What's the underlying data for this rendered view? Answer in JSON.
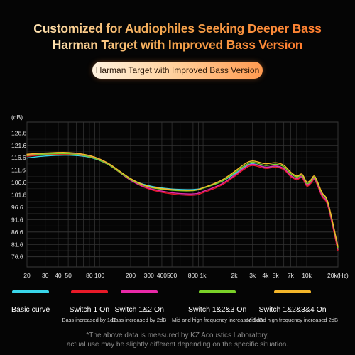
{
  "header": {
    "title_line1": "Customized for Audiophiles Seeking Deeper Bass",
    "title_line2": "Harman Target with Improved Bass Version",
    "badge": "Harman Target with Improved Bass Version"
  },
  "chart_data": {
    "type": "line",
    "ylabel": "(dB)",
    "y_ticks": [
      "126.6",
      "121.6",
      "116.6",
      "111.6",
      "106.6",
      "101.6",
      "96.6",
      "91.6",
      "86.6",
      "81.6",
      "76.6"
    ],
    "y_tick_values": [
      126.6,
      121.6,
      116.6,
      111.6,
      106.6,
      101.6,
      96.6,
      91.6,
      86.6,
      81.6,
      76.6
    ],
    "ylim": [
      72.5,
      131
    ],
    "x_scale": "log",
    "xlim": [
      20,
      20000
    ],
    "x_ticks": [
      {
        "value": 20,
        "label": "20"
      },
      {
        "value": 30,
        "label": "30"
      },
      {
        "value": 40,
        "label": "40"
      },
      {
        "value": 50,
        "label": "50"
      },
      {
        "value": 80,
        "label": "80"
      },
      {
        "value": 100,
        "label": "100"
      },
      {
        "value": 200,
        "label": "200"
      },
      {
        "value": 300,
        "label": "300"
      },
      {
        "value": 400,
        "label": "400"
      },
      {
        "value": 500,
        "label": "500"
      },
      {
        "value": 800,
        "label": "800"
      },
      {
        "value": 1000,
        "label": "1k"
      },
      {
        "value": 2000,
        "label": "2k"
      },
      {
        "value": 3000,
        "label": "3k"
      },
      {
        "value": 4000,
        "label": "4k"
      },
      {
        "value": 5000,
        "label": "5k"
      },
      {
        "value": 7000,
        "label": "7k"
      },
      {
        "value": 10000,
        "label": "10k"
      },
      {
        "value": 20000,
        "label": "20k(Hz)"
      }
    ],
    "grid": true,
    "series": [
      {
        "name": "Basic curve",
        "color": "#39d6ea",
        "x": [
          20,
          30,
          50,
          80,
          120,
          200,
          300,
          500,
          800,
          1000,
          1500,
          2000,
          2500,
          3000,
          4000,
          5000,
          6000,
          7000,
          8000,
          9000,
          10000,
          11000,
          12000,
          14000,
          16000,
          20000
        ],
        "y": [
          116.5,
          117.3,
          117.6,
          116.8,
          114.0,
          108.0,
          105.3,
          104.0,
          103.8,
          104.5,
          107.0,
          110.0,
          112.8,
          114.2,
          112.8,
          113.2,
          112.2,
          109.5,
          108.2,
          108.8,
          105.5,
          106.5,
          107.8,
          101.5,
          97.5,
          79.5
        ]
      },
      {
        "name": "Switch 1 On",
        "color": "#e81a28",
        "x": [
          20,
          30,
          50,
          80,
          120,
          200,
          300,
          500,
          800,
          1000,
          1500,
          2000,
          2500,
          3000,
          4000,
          5000,
          6000,
          7000,
          8000,
          9000,
          10000,
          11000,
          12000,
          14000,
          16000,
          20000
        ],
        "y": [
          117.2,
          117.8,
          118.0,
          117.0,
          114.0,
          107.5,
          104.0,
          102.0,
          101.5,
          102.5,
          105.5,
          109.0,
          112.0,
          113.5,
          112.3,
          112.8,
          111.8,
          109.0,
          107.8,
          108.5,
          105.2,
          106.3,
          107.5,
          101.0,
          97.0,
          79.0
        ]
      },
      {
        "name": "Switch 1&2 On",
        "color": "#e829a8",
        "x": [
          20,
          30,
          50,
          80,
          120,
          200,
          300,
          500,
          800,
          1000,
          1500,
          2000,
          2500,
          3000,
          4000,
          5000,
          6000,
          7000,
          8000,
          9000,
          10000,
          11000,
          12000,
          14000,
          16000,
          20000
        ],
        "y": [
          117.8,
          118.3,
          118.4,
          117.2,
          114.2,
          107.5,
          104.3,
          102.5,
          102.0,
          103.0,
          106.0,
          109.5,
          112.5,
          114.0,
          112.8,
          113.3,
          112.3,
          109.5,
          108.2,
          109.0,
          105.8,
          106.8,
          108.0,
          101.5,
          97.5,
          79.8
        ]
      },
      {
        "name": "Switch 1&2&3 On",
        "color": "#7ad128",
        "x": [
          20,
          30,
          50,
          80,
          120,
          200,
          300,
          500,
          800,
          1000,
          1500,
          2000,
          2500,
          3000,
          4000,
          5000,
          6000,
          7000,
          8000,
          9000,
          10000,
          11000,
          12000,
          14000,
          16000,
          20000
        ],
        "y": [
          117.5,
          118.1,
          118.2,
          117.0,
          114.0,
          107.8,
          104.8,
          103.5,
          103.3,
          104.3,
          107.0,
          110.5,
          113.3,
          114.8,
          113.5,
          114.0,
          113.0,
          110.2,
          108.8,
          109.5,
          106.2,
          107.3,
          108.5,
          102.2,
          98.2,
          80.3
        ]
      },
      {
        "name": "Switch 1&2&3&4 On",
        "color": "#f4b62a",
        "x": [
          20,
          30,
          50,
          80,
          120,
          200,
          300,
          500,
          800,
          1000,
          1500,
          2000,
          2500,
          3000,
          4000,
          5000,
          6000,
          7000,
          8000,
          9000,
          10000,
          11000,
          12000,
          14000,
          16000,
          20000
        ],
        "y": [
          118.0,
          118.5,
          118.7,
          117.5,
          114.5,
          108.2,
          105.0,
          103.8,
          103.5,
          104.5,
          107.5,
          111.0,
          114.0,
          115.3,
          114.2,
          114.6,
          113.6,
          110.8,
          109.2,
          110.0,
          106.8,
          107.8,
          109.0,
          102.6,
          98.6,
          80.8
        ]
      }
    ]
  },
  "legend": [
    {
      "label": "Basic curve",
      "desc": "",
      "color": "#39d6ea"
    },
    {
      "label": "Switch 1 On",
      "desc": "Bass increased by 1dB",
      "color": "#e81a28"
    },
    {
      "label": "Switch 1&2 On",
      "desc": "Bass increased by 2dB",
      "color": "#e829a8"
    },
    {
      "label": "Switch 1&2&3 On",
      "desc": "Mid and high frequency increased 1dB",
      "color": "#7ad128"
    },
    {
      "label": "Switch 1&2&3&4 On",
      "desc": "Mid and high frequency increased 2dB",
      "color": "#f4b62a"
    }
  ],
  "footnote": {
    "line1": "*The above data is measured by KZ Acoustics Laboratory,",
    "line2": "actual use may be slightly different depending on the specific situation."
  }
}
